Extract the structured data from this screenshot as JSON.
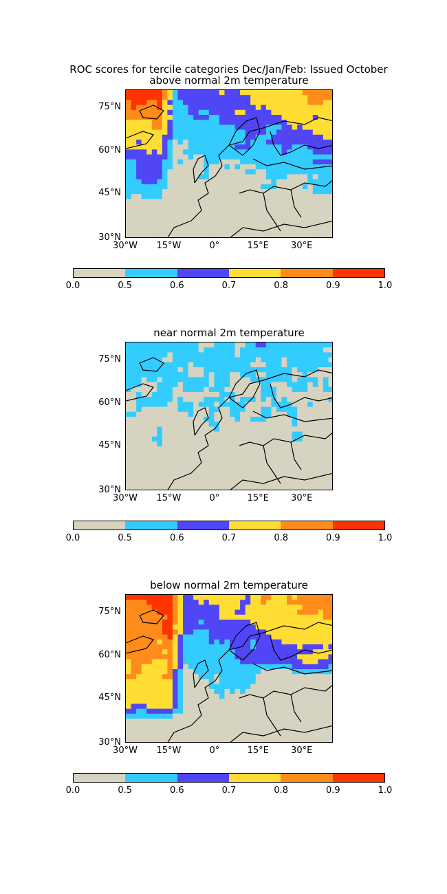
{
  "figure_title": "ROC scores for tercile categories Dec/Jan/Feb: Issued October",
  "panels": [
    {
      "title": "above normal 2m temperature"
    },
    {
      "title": "near normal 2m temperature"
    },
    {
      "title": "below normal 2m temperature"
    }
  ],
  "lat_ticks": [
    "75°N",
    "60°N",
    "45°N",
    "30°N"
  ],
  "lon_ticks": [
    "30°W",
    "15°W",
    "0°",
    "15°E",
    "30°E"
  ],
  "colorbar": {
    "labels": [
      "0.0",
      "0.5",
      "0.6",
      "0.7",
      "0.8",
      "0.9",
      "1.0"
    ],
    "colors": [
      "#d6d3c0",
      "#33ccff",
      "#5046f5",
      "#ffdd33",
      "#ff8c1a",
      "#ff3300"
    ]
  },
  "chart_data": {
    "type": "heatmap",
    "x_range": [
      -30,
      40
    ],
    "y_range": [
      30,
      80
    ],
    "bins": [
      0.0,
      0.5,
      0.6,
      0.7,
      0.8,
      0.9,
      1.0
    ]
  }
}
